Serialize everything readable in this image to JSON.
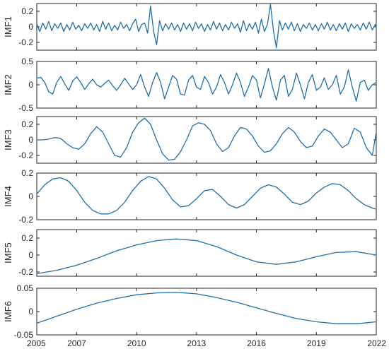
{
  "chart_data": [
    {
      "type": "line",
      "ylabel": "IMF1",
      "ylim": [
        -0.3,
        0.3
      ],
      "yticks": [
        -0.2,
        0,
        0.2
      ],
      "ytick_labels": [
        "-0.2",
        "0",
        "0.2"
      ],
      "series": [
        {
          "x": [
            2005.0,
            2005.15,
            2005.3,
            2005.45,
            2005.6,
            2005.75,
            2005.9,
            2006.05,
            2006.2,
            2006.35,
            2006.5,
            2006.65,
            2006.8,
            2006.95,
            2007.1,
            2007.25,
            2007.4,
            2007.55,
            2007.7,
            2007.85,
            2008.0,
            2008.15,
            2008.3,
            2008.45,
            2008.6,
            2008.75,
            2008.9,
            2009.05,
            2009.2,
            2009.35,
            2009.5,
            2009.65,
            2009.8,
            2009.95,
            2010.1,
            2010.25,
            2010.4,
            2010.55,
            2010.7,
            2010.85,
            2011.0,
            2011.15,
            2011.3,
            2011.45,
            2011.6,
            2011.75,
            2011.9,
            2012.05,
            2012.2,
            2012.35,
            2012.5,
            2012.65,
            2012.8,
            2012.95,
            2013.1,
            2013.25,
            2013.4,
            2013.55,
            2013.7,
            2013.85,
            2014.0,
            2014.15,
            2014.3,
            2014.45,
            2014.6,
            2014.75,
            2014.9,
            2015.05,
            2015.2,
            2015.35,
            2015.5,
            2015.65,
            2015.8,
            2015.95,
            2016.1,
            2016.25,
            2016.4,
            2016.55,
            2016.7,
            2016.85,
            2017.0,
            2017.15,
            2017.3,
            2017.45,
            2017.6,
            2017.75,
            2017.9,
            2018.05,
            2018.2,
            2018.35,
            2018.5,
            2018.65,
            2018.8,
            2018.95,
            2019.1,
            2019.25,
            2019.4,
            2019.55,
            2019.7,
            2019.85,
            2020.0,
            2020.15,
            2020.3,
            2020.45,
            2020.6,
            2020.75,
            2020.9,
            2021.05,
            2021.2,
            2021.35,
            2021.5,
            2021.65,
            2021.8,
            2021.95,
            2022.0
          ],
          "values": [
            0.04,
            -0.06,
            0.05,
            -0.03,
            0.07,
            -0.05,
            0.04,
            -0.02,
            0.05,
            -0.06,
            0.03,
            -0.04,
            0.06,
            -0.03,
            0.02,
            -0.05,
            0.04,
            -0.02,
            0.05,
            -0.04,
            0.03,
            -0.06,
            0.07,
            -0.03,
            0.05,
            -0.05,
            0.02,
            -0.04,
            0.06,
            -0.02,
            0.03,
            -0.05,
            0.04,
            0.1,
            -0.06,
            0.03,
            0.05,
            -0.08,
            0.27,
            -0.06,
            -0.23,
            0.08,
            -0.05,
            0.04,
            -0.03,
            0.05,
            -0.04,
            0.03,
            -0.06,
            0.05,
            -0.03,
            0.04,
            -0.05,
            0.06,
            -0.02,
            0.04,
            -0.06,
            0.03,
            -0.04,
            0.07,
            -0.03,
            0.05,
            -0.05,
            0.03,
            -0.04,
            0.06,
            -0.02,
            0.04,
            -0.07,
            0.08,
            -0.05,
            0.04,
            -0.03,
            0.06,
            -0.08,
            0.1,
            -0.06,
            0.03,
            0.29,
            -0.05,
            -0.27,
            0.08,
            -0.04,
            0.05,
            -0.03,
            0.06,
            -0.05,
            0.04,
            -0.06,
            0.03,
            -0.02,
            0.05,
            -0.04,
            0.03,
            -0.05,
            0.04,
            -0.03,
            0.06,
            -0.04,
            0.03,
            -0.05,
            0.04,
            -0.03,
            0.05,
            -0.06,
            0.04,
            -0.02,
            0.03,
            -0.04,
            0.05,
            -0.03,
            0.06,
            -0.04,
            0.03,
            -0.02
          ]
        }
      ]
    },
    {
      "type": "line",
      "ylabel": "IMF2",
      "ylim": [
        -0.5,
        0.5
      ],
      "yticks": [
        -0.5,
        0,
        0.5
      ],
      "ytick_labels": [
        "-0.5",
        "0",
        "0.5"
      ],
      "series": [
        {
          "x": [
            2005.0,
            2005.2,
            2005.4,
            2005.6,
            2005.8,
            2006.0,
            2006.2,
            2006.4,
            2006.6,
            2006.8,
            2007.0,
            2007.2,
            2007.4,
            2007.6,
            2007.8,
            2008.0,
            2008.2,
            2008.4,
            2008.6,
            2008.8,
            2009.0,
            2009.2,
            2009.4,
            2009.6,
            2009.8,
            2010.0,
            2010.2,
            2010.4,
            2010.6,
            2010.8,
            2011.0,
            2011.2,
            2011.4,
            2011.6,
            2011.8,
            2012.0,
            2012.2,
            2012.4,
            2012.6,
            2012.8,
            2013.0,
            2013.2,
            2013.4,
            2013.6,
            2013.8,
            2014.0,
            2014.2,
            2014.4,
            2014.6,
            2014.8,
            2015.0,
            2015.2,
            2015.4,
            2015.6,
            2015.8,
            2016.0,
            2016.2,
            2016.4,
            2016.6,
            2016.8,
            2017.0,
            2017.2,
            2017.4,
            2017.6,
            2017.8,
            2018.0,
            2018.2,
            2018.4,
            2018.6,
            2018.8,
            2019.0,
            2019.2,
            2019.4,
            2019.6,
            2019.8,
            2020.0,
            2020.2,
            2020.4,
            2020.6,
            2020.8,
            2021.0,
            2021.2,
            2021.4,
            2021.6,
            2021.8,
            2022.0
          ],
          "values": [
            0.14,
            0.16,
            0.05,
            -0.15,
            -0.2,
            0.05,
            0.18,
            0.02,
            -0.12,
            0.08,
            0.17,
            0.05,
            -0.1,
            0.02,
            0.12,
            0.0,
            -0.05,
            0.03,
            0.1,
            -0.02,
            -0.12,
            0.0,
            0.14,
            0.02,
            -0.1,
            0.0,
            0.22,
            -0.05,
            -0.25,
            0.05,
            0.26,
            0.05,
            -0.3,
            -0.05,
            0.2,
            0.12,
            -0.2,
            -0.22,
            0.1,
            0.2,
            -0.05,
            -0.1,
            0.18,
            0.05,
            -0.2,
            -0.05,
            0.22,
            0.05,
            -0.2,
            0.0,
            0.25,
            0.05,
            -0.25,
            -0.05,
            0.2,
            0.1,
            -0.28,
            0.02,
            0.35,
            -0.05,
            -0.33,
            0.1,
            0.2,
            -0.25,
            -0.1,
            0.25,
            0.0,
            -0.3,
            0.05,
            0.22,
            -0.12,
            -0.05,
            0.15,
            -0.1,
            0.0,
            0.2,
            -0.2,
            -0.05,
            0.32,
            -0.05,
            -0.35,
            0.05,
            0.1,
            -0.12,
            0.0,
            0.05
          ]
        }
      ]
    },
    {
      "type": "line",
      "ylabel": "IMF3",
      "ylim": [
        -0.3,
        0.3
      ],
      "yticks": [
        -0.2,
        0,
        0.2
      ],
      "ytick_labels": [
        "-0.2",
        "0",
        "0.2"
      ],
      "series": [
        {
          "x": [
            2005.0,
            2005.3,
            2005.6,
            2005.9,
            2006.2,
            2006.5,
            2006.8,
            2007.1,
            2007.4,
            2007.7,
            2008.0,
            2008.3,
            2008.6,
            2008.9,
            2009.2,
            2009.5,
            2009.8,
            2010.1,
            2010.4,
            2010.7,
            2011.0,
            2011.3,
            2011.6,
            2011.9,
            2012.2,
            2012.5,
            2012.8,
            2013.1,
            2013.4,
            2013.7,
            2014.0,
            2014.3,
            2014.6,
            2014.9,
            2015.2,
            2015.5,
            2015.8,
            2016.1,
            2016.4,
            2016.7,
            2017.0,
            2017.3,
            2017.6,
            2017.9,
            2018.2,
            2018.5,
            2018.8,
            2019.1,
            2019.4,
            2019.7,
            2020.0,
            2020.3,
            2020.6,
            2020.9,
            2021.2,
            2021.5,
            2021.8,
            2022.0
          ],
          "values": [
            0.0,
            0.0,
            0.01,
            0.03,
            0.02,
            -0.05,
            -0.1,
            -0.12,
            -0.05,
            0.08,
            0.17,
            0.1,
            -0.05,
            -0.2,
            -0.22,
            -0.1,
            0.1,
            0.22,
            0.28,
            0.2,
            0.0,
            -0.18,
            -0.26,
            -0.25,
            -0.15,
            0.0,
            0.18,
            0.22,
            0.2,
            0.12,
            -0.05,
            -0.15,
            -0.1,
            0.05,
            0.16,
            0.14,
            0.05,
            -0.08,
            -0.16,
            -0.14,
            -0.05,
            0.08,
            0.16,
            0.1,
            -0.02,
            -0.1,
            -0.08,
            0.05,
            0.14,
            0.1,
            0.0,
            -0.1,
            -0.05,
            0.15,
            0.1,
            -0.1,
            -0.2,
            0.1
          ]
        }
      ]
    },
    {
      "type": "line",
      "ylabel": "IMF4",
      "ylim": [
        -0.2,
        0.2
      ],
      "yticks": [
        -0.2,
        0,
        0.2
      ],
      "ytick_labels": [
        "-0.2",
        "0",
        "0.2"
      ],
      "series": [
        {
          "x": [
            2005.0,
            2005.4,
            2005.8,
            2006.2,
            2006.6,
            2007.0,
            2007.4,
            2007.8,
            2008.2,
            2008.6,
            2009.0,
            2009.4,
            2009.8,
            2010.2,
            2010.6,
            2011.0,
            2011.4,
            2011.8,
            2012.2,
            2012.6,
            2013.0,
            2013.4,
            2013.8,
            2014.2,
            2014.6,
            2015.0,
            2015.4,
            2015.8,
            2016.2,
            2016.6,
            2017.0,
            2017.4,
            2017.8,
            2018.2,
            2018.6,
            2019.0,
            2019.4,
            2019.8,
            2020.2,
            2020.6,
            2021.0,
            2021.4,
            2021.8,
            2022.0
          ],
          "values": [
            0.02,
            0.1,
            0.15,
            0.16,
            0.13,
            0.05,
            -0.05,
            -0.12,
            -0.15,
            -0.15,
            -0.12,
            -0.05,
            0.05,
            0.13,
            0.17,
            0.15,
            0.07,
            -0.03,
            -0.09,
            -0.08,
            -0.02,
            0.05,
            0.06,
            0.0,
            -0.07,
            -0.1,
            -0.07,
            0.0,
            0.07,
            0.1,
            0.08,
            0.02,
            -0.05,
            -0.07,
            -0.04,
            0.03,
            0.08,
            0.11,
            0.1,
            0.05,
            -0.02,
            -0.07,
            -0.1,
            -0.11
          ]
        }
      ]
    },
    {
      "type": "line",
      "ylabel": "IMF5",
      "ylim": [
        -0.25,
        0.3
      ],
      "yticks": [
        -0.2,
        0,
        0.2
      ],
      "ytick_labels": [
        "-0.2",
        "0",
        "0.2"
      ],
      "series": [
        {
          "x": [
            2005.0,
            2006.0,
            2007.0,
            2008.0,
            2009.0,
            2010.0,
            2011.0,
            2012.0,
            2013.0,
            2014.0,
            2015.0,
            2016.0,
            2017.0,
            2018.0,
            2019.0,
            2020.0,
            2021.0,
            2022.0
          ],
          "values": [
            -0.22,
            -0.18,
            -0.12,
            -0.04,
            0.05,
            0.12,
            0.17,
            0.19,
            0.17,
            0.1,
            0.0,
            -0.08,
            -0.11,
            -0.08,
            -0.02,
            0.03,
            0.04,
            0.0
          ]
        }
      ]
    },
    {
      "type": "line",
      "ylabel": "IMF6",
      "ylim": [
        -0.05,
        0.05
      ],
      "yticks": [
        -0.05,
        0,
        0.05
      ],
      "ytick_labels": [
        "-0.05",
        "0",
        "0.05"
      ],
      "series": [
        {
          "x": [
            2005.0,
            2006.0,
            2007.0,
            2008.0,
            2009.0,
            2010.0,
            2011.0,
            2012.0,
            2013.0,
            2014.0,
            2015.0,
            2016.0,
            2017.0,
            2018.0,
            2019.0,
            2020.0,
            2021.0,
            2022.0
          ],
          "values": [
            -0.025,
            -0.01,
            0.005,
            0.018,
            0.028,
            0.036,
            0.04,
            0.041,
            0.038,
            0.03,
            0.02,
            0.008,
            -0.004,
            -0.015,
            -0.022,
            -0.026,
            -0.026,
            -0.022
          ]
        }
      ]
    }
  ],
  "shared_xaxis": {
    "xlim": [
      2005,
      2022
    ],
    "ticks": [
      2005,
      2007,
      2010,
      2013,
      2016,
      2019,
      2022
    ],
    "tick_labels": [
      "2005",
      "2007",
      "2010",
      "2013",
      "2016",
      "2019",
      "2022"
    ]
  },
  "colors": {
    "line": "#1f6fa6",
    "axis": "#262626"
  }
}
